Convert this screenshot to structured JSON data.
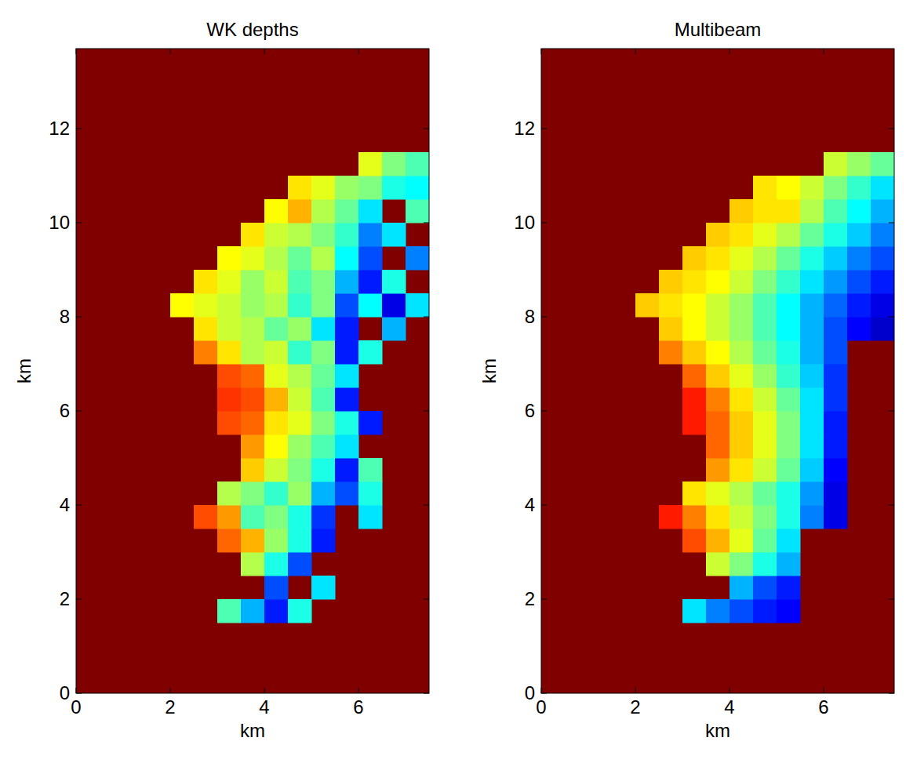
{
  "chart_data": [
    {
      "type": "heatmap",
      "title": "WK depths",
      "x_label": "km",
      "y_label": "km",
      "xlim": [
        0,
        7.5
      ],
      "ylim": [
        0,
        13.7
      ],
      "xticks": [
        0,
        2,
        4,
        6
      ],
      "yticks": [
        0,
        2,
        4,
        6,
        8,
        10,
        12
      ],
      "clim": [
        -20,
        0
      ],
      "x": [
        0.25,
        0.75,
        1.25,
        1.75,
        2.25,
        2.75,
        3.25,
        3.75,
        4.25,
        4.75,
        5.25,
        5.75,
        6.25,
        6.75,
        7.25
      ],
      "y": [
        1.75,
        2.25,
        2.75,
        3.25,
        3.75,
        4.25,
        4.75,
        5.25,
        5.75,
        6.25,
        6.75,
        7.25,
        7.75,
        8.25,
        8.75,
        9.25,
        9.75,
        10.25,
        10.75,
        11.25
      ],
      "cells": [
        [
          null,
          null,
          null,
          null,
          null,
          null,
          -11,
          -14,
          -17,
          -12,
          null,
          null,
          null,
          null,
          null
        ],
        [
          null,
          null,
          null,
          null,
          null,
          null,
          null,
          null,
          -16,
          null,
          -13,
          null,
          null,
          null,
          null
        ],
        [
          null,
          null,
          null,
          null,
          null,
          null,
          null,
          -9,
          -12,
          -16,
          null,
          null,
          null,
          null,
          null
        ],
        [
          null,
          null,
          null,
          null,
          null,
          null,
          -4.5,
          -6,
          -9.5,
          -12,
          -17,
          null,
          null,
          null,
          null
        ],
        [
          null,
          null,
          null,
          null,
          null,
          -4,
          -5.5,
          -11,
          -10,
          -12,
          -16.5,
          null,
          -13,
          null,
          null
        ],
        [
          null,
          null,
          null,
          null,
          null,
          null,
          -9,
          -10,
          -11.5,
          -9.5,
          -14,
          -16,
          -12,
          null,
          null
        ],
        [
          null,
          null,
          null,
          null,
          null,
          null,
          null,
          -6.5,
          -8.5,
          -10,
          -12,
          -17,
          -11,
          null,
          null
        ],
        [
          null,
          null,
          null,
          null,
          null,
          null,
          null,
          -5.5,
          -7.5,
          -9.5,
          -11,
          -13,
          null,
          null,
          null
        ],
        [
          null,
          null,
          null,
          null,
          null,
          null,
          -4,
          -4.5,
          -7,
          -8,
          -10,
          -12,
          -17,
          null,
          null
        ],
        [
          null,
          null,
          null,
          null,
          null,
          null,
          -3.5,
          -4,
          -6,
          -8.5,
          -11,
          -17,
          null,
          null,
          null
        ],
        [
          null,
          null,
          null,
          null,
          null,
          null,
          -4,
          -4.5,
          -8,
          -9,
          -10.5,
          -13,
          null,
          null,
          null
        ],
        [
          null,
          null,
          null,
          null,
          null,
          -5,
          -7,
          -9,
          -8.5,
          -11.5,
          -10,
          -17,
          -12,
          null,
          null
        ],
        [
          null,
          null,
          null,
          null,
          null,
          -7,
          -8.5,
          -9,
          -10.5,
          -9.5,
          -13,
          -17,
          null,
          -14,
          null
        ],
        [
          null,
          null,
          null,
          null,
          -7.5,
          -8,
          -8.5,
          -9.5,
          -9,
          -11.5,
          -10,
          -16,
          -12.5,
          -18,
          -13
        ],
        [
          null,
          null,
          null,
          null,
          null,
          -7,
          -8,
          -9.5,
          -8.5,
          -11,
          -10,
          -14,
          -17,
          -12,
          null
        ],
        [
          null,
          null,
          null,
          null,
          null,
          null,
          -7.5,
          -8,
          -9,
          -10.5,
          -9,
          -12.5,
          -16,
          null,
          -15
        ],
        [
          null,
          null,
          null,
          null,
          null,
          null,
          null,
          -7,
          -8.5,
          -9,
          -10,
          -11.5,
          -15,
          -13,
          null
        ],
        [
          null,
          null,
          null,
          null,
          null,
          null,
          null,
          null,
          -7.5,
          -6,
          -9,
          -10.5,
          -13,
          null,
          -11
        ],
        [
          null,
          null,
          null,
          null,
          null,
          null,
          null,
          null,
          null,
          -7,
          -8,
          -9.5,
          -10,
          -12,
          -12.5
        ],
        [
          null,
          null,
          null,
          null,
          null,
          null,
          null,
          null,
          null,
          null,
          null,
          null,
          -8,
          -10,
          -11
        ]
      ]
    },
    {
      "type": "heatmap",
      "title": "Multibeam",
      "x_label": "km",
      "y_label": "km",
      "xlim": [
        0,
        7.5
      ],
      "ylim": [
        0,
        13.7
      ],
      "xticks": [
        0,
        2,
        4,
        6
      ],
      "yticks": [
        0,
        2,
        4,
        6,
        8,
        10,
        12
      ],
      "clim": [
        -20,
        0
      ],
      "x": [
        0.25,
        0.75,
        1.25,
        1.75,
        2.25,
        2.75,
        3.25,
        3.75,
        4.25,
        4.75,
        5.25,
        5.75,
        6.25,
        6.75,
        7.25
      ],
      "y": [
        1.75,
        2.25,
        2.75,
        3.25,
        3.75,
        4.25,
        4.75,
        5.25,
        5.75,
        6.25,
        6.75,
        7.25,
        7.75,
        8.25,
        8.75,
        9.25,
        9.75,
        10.25,
        10.75,
        11.25
      ],
      "cells": [
        [
          null,
          null,
          null,
          null,
          null,
          null,
          -13,
          -15,
          -16,
          -17,
          -17.5,
          null,
          null,
          null,
          null
        ],
        [
          null,
          null,
          null,
          null,
          null,
          null,
          null,
          null,
          -14,
          -16,
          -17,
          null,
          null,
          null,
          null
        ],
        [
          null,
          null,
          null,
          null,
          null,
          null,
          null,
          -8.5,
          -10,
          -12,
          -14,
          null,
          null,
          null,
          null
        ],
        [
          null,
          null,
          null,
          null,
          null,
          null,
          -4,
          -6,
          -8,
          -10.5,
          -13,
          null,
          null,
          null,
          null
        ],
        [
          null,
          null,
          null,
          null,
          null,
          -3,
          -5,
          -7,
          -8.5,
          -10,
          -12,
          -15,
          -18,
          null,
          null
        ],
        [
          null,
          null,
          null,
          null,
          null,
          null,
          -7,
          -8,
          -9,
          -10.5,
          -12,
          -14.5,
          -18,
          null,
          null
        ],
        [
          null,
          null,
          null,
          null,
          null,
          null,
          null,
          -5.5,
          -7,
          -8.5,
          -10.5,
          -13.5,
          -17.5,
          null,
          null
        ],
        [
          null,
          null,
          null,
          null,
          null,
          null,
          null,
          -4.5,
          -6.5,
          -8,
          -10,
          -13,
          -17,
          null,
          null
        ],
        [
          null,
          null,
          null,
          null,
          null,
          null,
          -3,
          -4.5,
          -6.5,
          -8,
          -10,
          -13,
          -17,
          null,
          null
        ],
        [
          null,
          null,
          null,
          null,
          null,
          null,
          -3,
          -5,
          -7,
          -8.5,
          -10.5,
          -13,
          -16.5,
          null,
          null
        ],
        [
          null,
          null,
          null,
          null,
          null,
          null,
          -4.5,
          -6.5,
          -8,
          -9.5,
          -11.5,
          -13.5,
          -16.5,
          null,
          null
        ],
        [
          null,
          null,
          null,
          null,
          null,
          -5,
          -6.5,
          -7.5,
          -9,
          -10.5,
          -12,
          -14,
          -16,
          null,
          null
        ],
        [
          null,
          null,
          null,
          null,
          null,
          -6.5,
          -7.5,
          -8.5,
          -9.5,
          -11,
          -12.5,
          -14,
          -16,
          -17.5,
          -18.5
        ],
        [
          null,
          null,
          null,
          null,
          -6.5,
          -7,
          -7.5,
          -8.5,
          -9.5,
          -11,
          -12.5,
          -14,
          -15.5,
          -17,
          -18
        ],
        [
          null,
          null,
          null,
          null,
          null,
          -6.5,
          -7,
          -7.5,
          -8.5,
          -10,
          -11.5,
          -13,
          -14.5,
          -16,
          -17
        ],
        [
          null,
          null,
          null,
          null,
          null,
          null,
          -6.5,
          -7,
          -8,
          -9,
          -10.5,
          -12,
          -13.5,
          -15,
          -16
        ],
        [
          null,
          null,
          null,
          null,
          null,
          null,
          null,
          -6.5,
          -7,
          -8,
          -9,
          -10.5,
          -12,
          -13.5,
          -15
        ],
        [
          null,
          null,
          null,
          null,
          null,
          null,
          null,
          null,
          -6.5,
          -7,
          -7,
          -9,
          -11,
          -12.5,
          -14
        ],
        [
          null,
          null,
          null,
          null,
          null,
          null,
          null,
          null,
          null,
          -7,
          -7.5,
          -8.5,
          -10,
          -11.5,
          -13
        ],
        [
          null,
          null,
          null,
          null,
          null,
          null,
          null,
          null,
          null,
          null,
          null,
          null,
          -8.5,
          -9.5,
          -10.5
        ]
      ]
    }
  ]
}
